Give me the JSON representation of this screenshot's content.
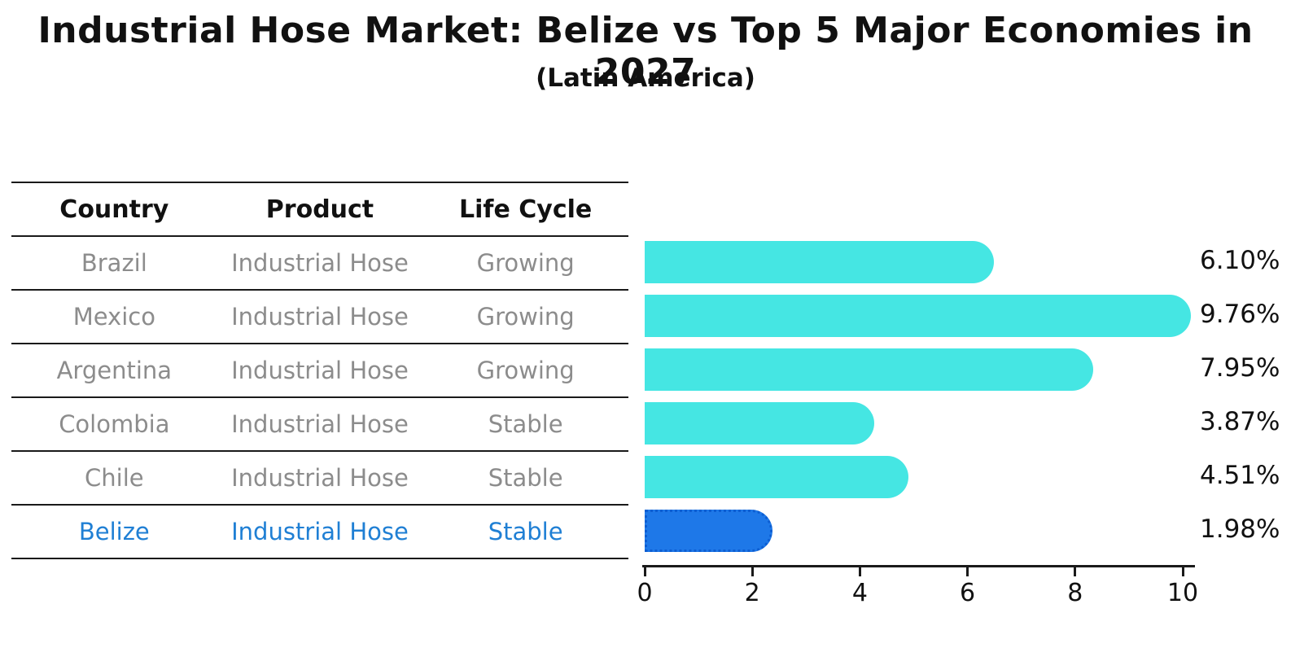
{
  "title": "Industrial Hose Market: Belize vs Top 5 Major Economies in 2027",
  "subtitle": "(Latin America)",
  "table": {
    "headers": [
      "Country",
      "Product",
      "Life Cycle"
    ],
    "rows": [
      {
        "country": "Brazil",
        "product": "Industrial Hose",
        "life_cycle": "Growing",
        "value_label": "6.10%",
        "highlight": false
      },
      {
        "country": "Mexico",
        "product": "Industrial Hose",
        "life_cycle": "Growing",
        "value_label": "9.76%",
        "highlight": false
      },
      {
        "country": "Argentina",
        "product": "Industrial Hose",
        "life_cycle": "Growing",
        "value_label": "7.95%",
        "highlight": false
      },
      {
        "country": "Colombia",
        "product": "Industrial Hose",
        "life_cycle": "Stable",
        "value_label": "3.87%",
        "highlight": false
      },
      {
        "country": "Chile",
        "product": "Industrial Hose",
        "life_cycle": "Stable",
        "value_label": "4.51%",
        "highlight": false
      },
      {
        "country": "Belize",
        "product": "Industrial Hose",
        "life_cycle": "Stable",
        "value_label": "1.98%",
        "highlight": true
      }
    ]
  },
  "chart_data": {
    "type": "bar",
    "orientation": "horizontal",
    "title": "Industrial Hose Market: Belize vs Top 5 Major Economies in 2027",
    "subtitle": "(Latin America)",
    "categories": [
      "Brazil",
      "Mexico",
      "Argentina",
      "Colombia",
      "Chile",
      "Belize"
    ],
    "values": [
      6.1,
      9.76,
      7.95,
      3.87,
      4.51,
      1.98
    ],
    "value_labels": [
      "6.10%",
      "9.76%",
      "7.95%",
      "3.87%",
      "4.51%",
      "1.98%"
    ],
    "xlim": [
      0,
      10
    ],
    "xticks": [
      0,
      2,
      4,
      6,
      8,
      10
    ],
    "grid": false,
    "legend": false,
    "highlight_index": 5
  },
  "colors": {
    "bar_default": "#45e6e3",
    "bar_highlight": "#1e78e8",
    "bar_highlight_border": "#0d5ed2",
    "table_line": "#1a1a1a",
    "cell_text": "#8c8c8c",
    "highlight_text": "#1f7fd4",
    "axis_text": "#111111"
  }
}
